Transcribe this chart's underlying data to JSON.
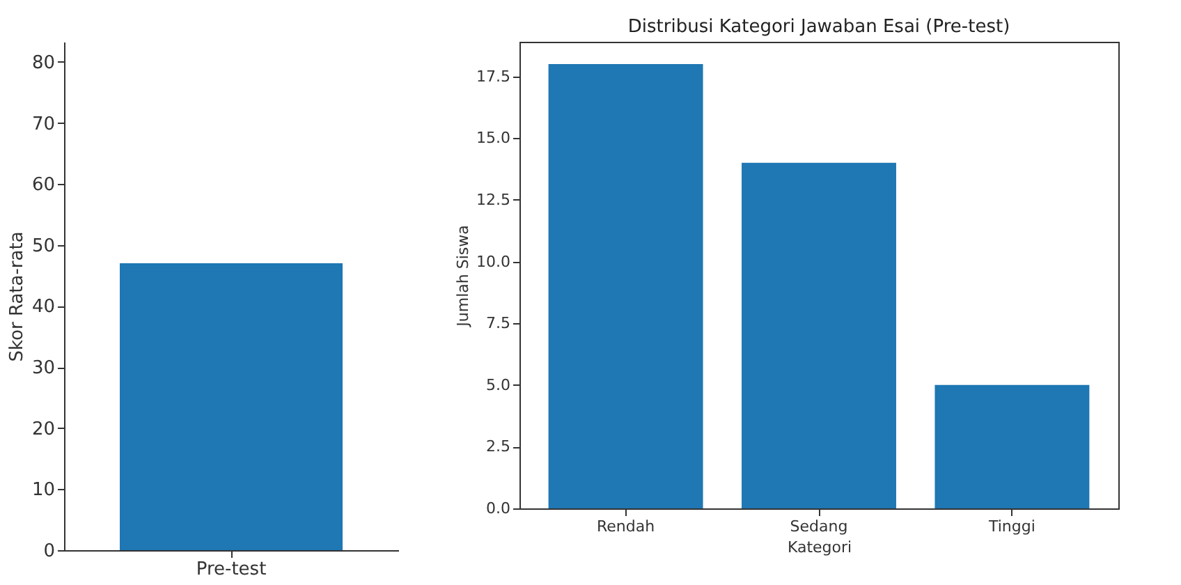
{
  "chart_data": [
    {
      "type": "bar",
      "categories": [
        "Pre-test"
      ],
      "values": [
        47
      ],
      "color": "#1f77b4",
      "ylabel": "Skor Rata-rata",
      "ylim": [
        0,
        83.3
      ],
      "yticks": [
        0,
        10,
        20,
        30,
        40,
        50,
        60,
        70,
        80
      ],
      "grid": false
    },
    {
      "type": "bar",
      "title": "Distribusi Kategori Jawaban Esai (Pre-test)",
      "categories": [
        "Rendah",
        "Sedang",
        "Tinggi"
      ],
      "values": [
        18,
        14,
        5
      ],
      "color": "#1f77b4",
      "xlabel": "Kategori",
      "ylabel": "Jumlah Siswa",
      "ylim": [
        0,
        18.9
      ],
      "yticks": [
        {
          "value": 0,
          "label": "0.0"
        },
        {
          "value": 2.5,
          "label": "2.5"
        },
        {
          "value": 5,
          "label": "5.0"
        },
        {
          "value": 7.5,
          "label": "7.5"
        },
        {
          "value": 10,
          "label": "10.0"
        },
        {
          "value": 12.5,
          "label": "12.5"
        },
        {
          "value": 15,
          "label": "15.0"
        },
        {
          "value": 17.5,
          "label": "17.5"
        }
      ],
      "grid": false
    }
  ]
}
